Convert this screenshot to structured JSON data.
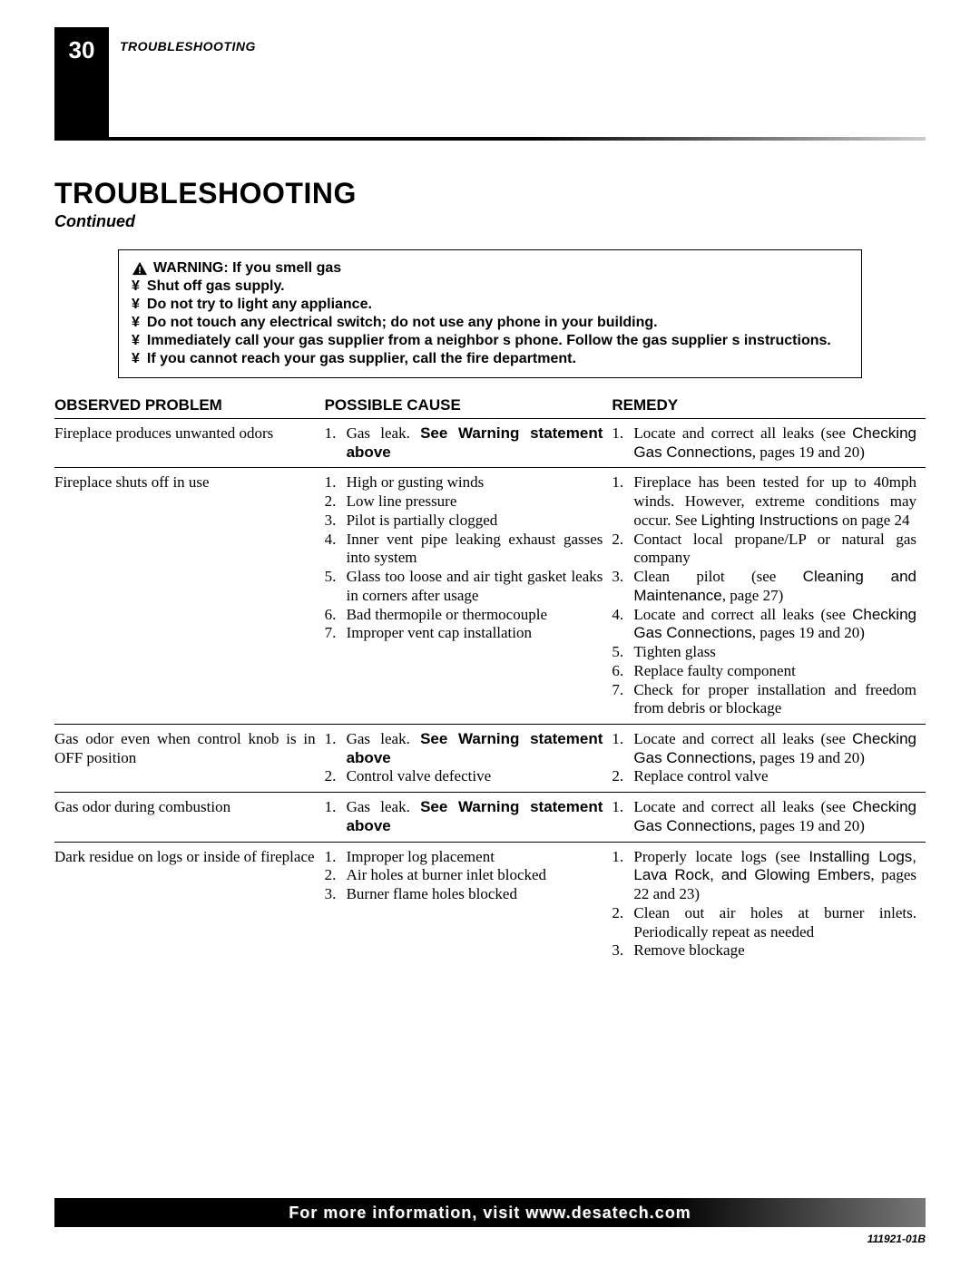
{
  "page_number": "30",
  "header_label": "TROUBLESHOOTING",
  "title": "TROUBLESHOOTING",
  "subtitle": "Continued",
  "warning": {
    "lead": "WARNING: If you smell gas",
    "bullets": [
      "Shut off gas supply.",
      "Do not try to light any appliance.",
      "Do not touch any electrical switch; do not use any phone in your building.",
      "Immediately call your gas supplier from a neighbor s phone. Follow the gas supplier s instructions.",
      "If you cannot reach your gas supplier, call the fire department."
    ]
  },
  "columns": {
    "observed": "OBSERVED PROBLEM",
    "cause": "POSSIBLE CAUSE",
    "remedy": "REMEDY"
  },
  "rows": [
    {
      "observed": "Fireplace produces unwanted odors",
      "causes": [
        [
          {
            "t": "Gas leak. "
          },
          {
            "t": "See Warning statement above",
            "bold": true,
            "sans": true
          }
        ]
      ],
      "remedies": [
        [
          {
            "t": "Locate and correct all leaks (see "
          },
          {
            "t": "Checking Gas Connections",
            "sans": true
          },
          {
            "t": ", pages 19 and 20)"
          }
        ]
      ]
    },
    {
      "observed": "Fireplace shuts off in use",
      "causes": [
        [
          {
            "t": "High or gusting winds"
          }
        ],
        [
          {
            "t": "Low line pressure"
          }
        ],
        [
          {
            "t": "Pilot is partially clogged"
          }
        ],
        [
          {
            "t": "Inner vent pipe leaking exhaust gasses into system"
          }
        ],
        [
          {
            "t": "Glass too loose and air tight gasket leaks in corners after usage"
          }
        ],
        [
          {
            "t": "Bad thermopile or thermocouple"
          }
        ],
        [
          {
            "t": "Improper vent cap installation"
          }
        ]
      ],
      "remedies": [
        [
          {
            "t": "Fireplace has been tested for up to 40mph winds. However, extreme conditions may occur. See "
          },
          {
            "t": "Lighting Instructions",
            "sans": true
          },
          {
            "t": " on page 24"
          }
        ],
        [
          {
            "t": "Contact local propane/LP or natural gas company"
          }
        ],
        [
          {
            "t": "Clean pilot (see "
          },
          {
            "t": "Cleaning and Maintenance",
            "sans": true
          },
          {
            "t": ", page 27)"
          }
        ],
        [
          {
            "t": "Locate and correct all leaks (see "
          },
          {
            "t": "Checking Gas Connections",
            "sans": true
          },
          {
            "t": ", pages 19 and 20)"
          }
        ],
        [
          {
            "t": "Tighten glass"
          }
        ],
        [
          {
            "t": "Replace faulty component"
          }
        ],
        [
          {
            "t": "Check for proper installation and freedom from debris or blockage"
          }
        ]
      ]
    },
    {
      "observed": "Gas odor even when control knob is in OFF position",
      "causes": [
        [
          {
            "t": "Gas leak. "
          },
          {
            "t": "See Warning statement above",
            "bold": true,
            "sans": true
          }
        ],
        [
          {
            "t": "Control valve defective"
          }
        ]
      ],
      "remedies": [
        [
          {
            "t": "Locate and correct all leaks (see "
          },
          {
            "t": "Checking Gas Connections",
            "sans": true
          },
          {
            "t": ", pages 19 and 20)"
          }
        ],
        [
          {
            "t": "Replace control valve"
          }
        ]
      ]
    },
    {
      "observed": "Gas odor during combustion",
      "causes": [
        [
          {
            "t": "Gas leak. "
          },
          {
            "t": "See Warning statement above",
            "bold": true,
            "sans": true
          }
        ]
      ],
      "remedies": [
        [
          {
            "t": "Locate and correct all leaks (see "
          },
          {
            "t": "Checking Gas Connections",
            "sans": true
          },
          {
            "t": ", pages 19 and 20)"
          }
        ]
      ]
    },
    {
      "observed": "Dark residue on logs or inside of fireplace",
      "causes": [
        [
          {
            "t": "Improper log placement"
          }
        ],
        [
          {
            "t": "Air holes at burner inlet blocked"
          }
        ],
        [
          {
            "t": "Burner flame holes blocked"
          }
        ]
      ],
      "remedies": [
        [
          {
            "t": "Properly locate logs (see "
          },
          {
            "t": "Installing Logs, Lava Rock, and Glowing Embers",
            "sans": true
          },
          {
            "t": ", pages 22 and 23)"
          }
        ],
        [
          {
            "t": "Clean out air holes at burner inlets. Periodically repeat as needed"
          }
        ],
        [
          {
            "t": "Remove blockage"
          }
        ]
      ]
    }
  ],
  "footer": "For more information, visit www.desatech.com",
  "doc_id": "111921-01B"
}
